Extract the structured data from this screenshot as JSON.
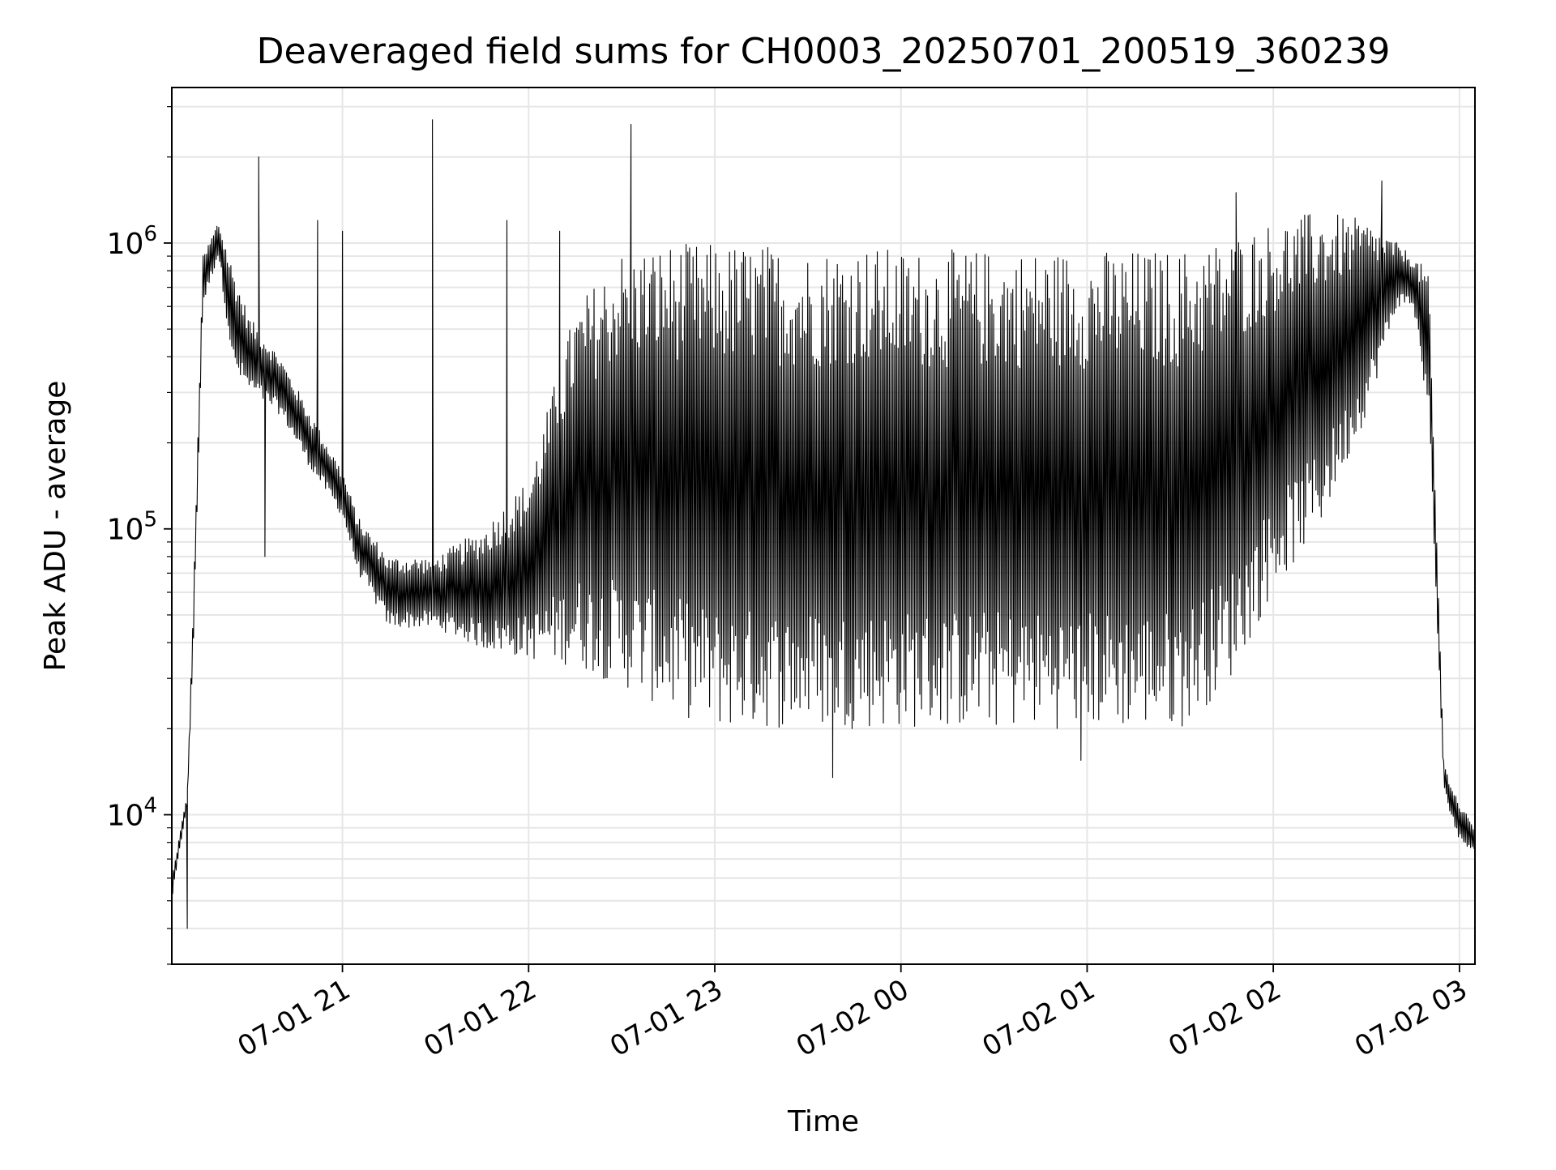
{
  "chart_data": {
    "type": "line",
    "title": "Deaveraged field sums for CH0003_20250701_200519_360239",
    "xlabel": "Time",
    "ylabel": "Peak ADU - average",
    "yscale": "log",
    "xlim": [
      "2025-07-01 20:05",
      "2025-07-02 03:05"
    ],
    "ylim": [
      3000,
      3500000
    ],
    "x_ticks": [
      "07-01 21",
      "07-01 22",
      "07-01 23",
      "07-02 00",
      "07-02 01",
      "07-02 02",
      "07-02 03"
    ],
    "y_ticks": [
      {
        "base": "10",
        "exp": "4",
        "value": 10000
      },
      {
        "base": "10",
        "exp": "5",
        "value": 100000
      },
      {
        "base": "10",
        "exp": "6",
        "value": 1000000
      }
    ],
    "grid": true,
    "line_color": "#000000",
    "grid_color": "#e6e6e6",
    "series": [
      {
        "envelope_x": [
          "2025-07-01 20:05",
          "2025-07-01 20:10",
          "2025-07-01 20:12",
          "2025-07-01 20:15",
          "2025-07-01 20:20",
          "2025-07-01 20:25",
          "2025-07-01 20:30",
          "2025-07-01 20:40",
          "2025-07-01 20:50",
          "2025-07-01 21:00",
          "2025-07-01 21:05",
          "2025-07-01 21:15",
          "2025-07-01 21:30",
          "2025-07-01 21:45",
          "2025-07-01 22:00",
          "2025-07-01 22:15",
          "2025-07-01 22:30",
          "2025-07-01 22:45",
          "2025-07-01 23:00",
          "2025-07-01 23:15",
          "2025-07-01 23:30",
          "2025-07-01 23:45",
          "2025-07-02 00:00",
          "2025-07-02 00:15",
          "2025-07-02 00:30",
          "2025-07-02 00:45",
          "2025-07-02 01:00",
          "2025-07-02 01:15",
          "2025-07-02 01:30",
          "2025-07-02 01:45",
          "2025-07-02 02:00",
          "2025-07-02 02:15",
          "2025-07-02 02:30",
          "2025-07-02 02:40",
          "2025-07-02 02:45",
          "2025-07-02 02:50",
          "2025-07-02 02:55",
          "2025-07-02 03:00",
          "2025-07-02 03:05"
        ],
        "envelope_low": [
          5000,
          11000,
          40000,
          600000,
          900000,
          350000,
          300000,
          250000,
          160000,
          110000,
          70000,
          45000,
          45000,
          38000,
          35000,
          33000,
          28000,
          23000,
          20000,
          20000,
          20000,
          20000,
          20000,
          20000,
          20000,
          20000,
          20000,
          20000,
          20000,
          28000,
          60000,
          100000,
          250000,
          600000,
          600000,
          250000,
          12000,
          8000,
          7500
        ],
        "envelope_high": [
          6000,
          12000,
          60000,
          900000,
          1200000,
          800000,
          550000,
          400000,
          250000,
          160000,
          110000,
          80000,
          80000,
          100000,
          150000,
          600000,
          950000,
          1000000,
          1000000,
          1000000,
          950000,
          1000000,
          950000,
          950000,
          950000,
          950000,
          950000,
          950000,
          950000,
          1050000,
          1200000,
          1300000,
          1200000,
          1000000,
          900000,
          800000,
          15000,
          11000,
          9000
        ],
        "spikes": [
          {
            "x": "2025-07-01 20:33",
            "y": 2000000
          },
          {
            "x": "2025-07-01 20:52",
            "y": 1200000
          },
          {
            "x": "2025-07-01 21:00",
            "y": 1100000
          },
          {
            "x": "2025-07-01 21:29",
            "y": 2700000
          },
          {
            "x": "2025-07-01 21:53",
            "y": 1200000
          },
          {
            "x": "2025-07-01 22:10",
            "y": 1100000
          },
          {
            "x": "2025-07-01 22:33",
            "y": 2600000
          },
          {
            "x": "2025-07-02 01:48",
            "y": 1500000
          },
          {
            "x": "2025-07-02 02:35",
            "y": 1650000
          }
        ],
        "dips": [
          {
            "x": "2025-07-01 20:10",
            "y": 4000
          },
          {
            "x": "2025-07-01 20:35",
            "y": 80000
          },
          {
            "x": "2025-07-01 23:38",
            "y": 13500
          },
          {
            "x": "2025-07-02 00:58",
            "y": 15500
          }
        ]
      }
    ]
  }
}
